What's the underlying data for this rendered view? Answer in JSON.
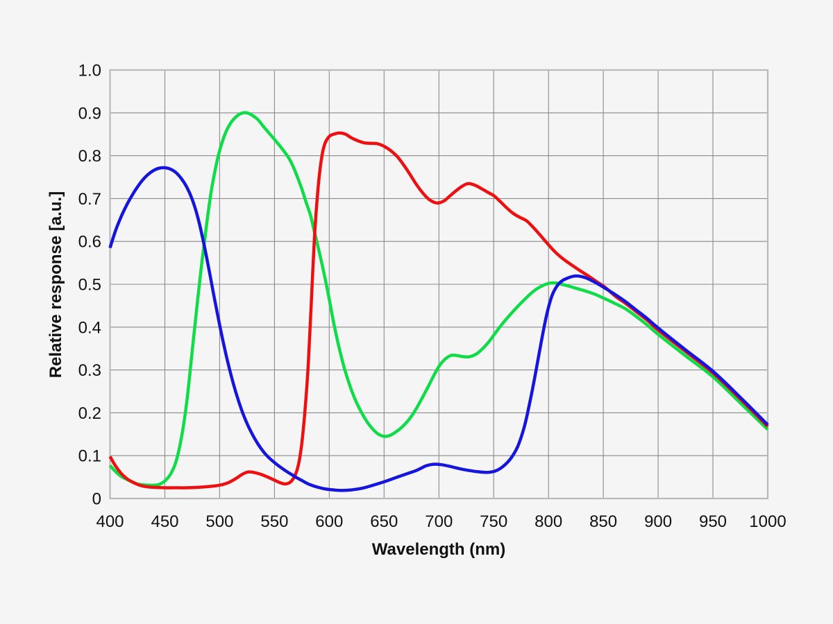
{
  "figure": {
    "background": "#f5f5f5",
    "grid_color": "#8a8a8a",
    "frame_color": "#b9b9b9",
    "text_color": "#111111",
    "line_width": 4.5
  },
  "chart_data": {
    "type": "line",
    "title": "",
    "xlabel": "Wavelength (nm)",
    "ylabel": "Relative response [a.u.]",
    "xlim": [
      400,
      1000
    ],
    "ylim": [
      0,
      1.0
    ],
    "grid": true,
    "legend_position": "none",
    "x_ticks": [
      {
        "v": 400,
        "label": "400"
      },
      {
        "v": 450,
        "label": "450"
      },
      {
        "v": 500,
        "label": "500"
      },
      {
        "v": 550,
        "label": "550"
      },
      {
        "v": 600,
        "label": "600"
      },
      {
        "v": 650,
        "label": "650"
      },
      {
        "v": 700,
        "label": "700"
      },
      {
        "v": 750,
        "label": "750"
      },
      {
        "v": 800,
        "label": "800"
      },
      {
        "v": 850,
        "label": "850"
      },
      {
        "v": 900,
        "label": "900"
      },
      {
        "v": 950,
        "label": "950"
      },
      {
        "v": 1000,
        "label": "1000"
      }
    ],
    "y_ticks": [
      {
        "v": 0.0,
        "label": "0"
      },
      {
        "v": 0.1,
        "label": "0.1"
      },
      {
        "v": 0.2,
        "label": "0.2"
      },
      {
        "v": 0.3,
        "label": "0.3"
      },
      {
        "v": 0.4,
        "label": "0.4"
      },
      {
        "v": 0.5,
        "label": "0.5"
      },
      {
        "v": 0.6,
        "label": "0.6"
      },
      {
        "v": 0.7,
        "label": "0.7"
      },
      {
        "v": 0.8,
        "label": "0.8"
      },
      {
        "v": 0.9,
        "label": "0.9"
      },
      {
        "v": 1.0,
        "label": "1.0"
      }
    ],
    "series": [
      {
        "name": "green-channel",
        "color": "#0edd47",
        "points": [
          [
            400,
            0.077
          ],
          [
            405,
            0.063
          ],
          [
            410,
            0.052
          ],
          [
            415,
            0.045
          ],
          [
            420,
            0.039
          ],
          [
            425,
            0.034
          ],
          [
            430,
            0.032
          ],
          [
            435,
            0.031
          ],
          [
            440,
            0.031
          ],
          [
            445,
            0.033
          ],
          [
            450,
            0.041
          ],
          [
            455,
            0.056
          ],
          [
            460,
            0.085
          ],
          [
            465,
            0.14
          ],
          [
            470,
            0.225
          ],
          [
            475,
            0.345
          ],
          [
            480,
            0.465
          ],
          [
            484,
            0.555
          ],
          [
            488,
            0.638
          ],
          [
            492,
            0.712
          ],
          [
            496,
            0.768
          ],
          [
            500,
            0.812
          ],
          [
            505,
            0.851
          ],
          [
            510,
            0.876
          ],
          [
            515,
            0.891
          ],
          [
            520,
            0.899
          ],
          [
            525,
            0.9
          ],
          [
            530,
            0.894
          ],
          [
            535,
            0.884
          ],
          [
            540,
            0.868
          ],
          [
            546,
            0.85
          ],
          [
            552,
            0.832
          ],
          [
            558,
            0.813
          ],
          [
            563,
            0.795
          ],
          [
            567,
            0.775
          ],
          [
            571,
            0.75
          ],
          [
            575,
            0.722
          ],
          [
            579,
            0.69
          ],
          [
            583,
            0.66
          ],
          [
            586,
            0.627
          ],
          [
            590,
            0.585
          ],
          [
            595,
            0.528
          ],
          [
            600,
            0.465
          ],
          [
            604,
            0.41
          ],
          [
            609,
            0.352
          ],
          [
            614,
            0.302
          ],
          [
            619,
            0.262
          ],
          [
            624,
            0.229
          ],
          [
            630,
            0.198
          ],
          [
            635,
            0.177
          ],
          [
            640,
            0.161
          ],
          [
            645,
            0.15
          ],
          [
            650,
            0.145
          ],
          [
            655,
            0.147
          ],
          [
            660,
            0.154
          ],
          [
            666,
            0.166
          ],
          [
            672,
            0.182
          ],
          [
            678,
            0.204
          ],
          [
            684,
            0.231
          ],
          [
            690,
            0.26
          ],
          [
            696,
            0.29
          ],
          [
            701,
            0.312
          ],
          [
            706,
            0.326
          ],
          [
            711,
            0.334
          ],
          [
            716,
            0.334
          ],
          [
            722,
            0.331
          ],
          [
            728,
            0.331
          ],
          [
            734,
            0.337
          ],
          [
            740,
            0.35
          ],
          [
            746,
            0.367
          ],
          [
            752,
            0.388
          ],
          [
            758,
            0.408
          ],
          [
            764,
            0.426
          ],
          [
            770,
            0.443
          ],
          [
            776,
            0.459
          ],
          [
            782,
            0.474
          ],
          [
            788,
            0.487
          ],
          [
            794,
            0.496
          ],
          [
            800,
            0.502
          ],
          [
            806,
            0.503
          ],
          [
            812,
            0.5
          ],
          [
            818,
            0.496
          ],
          [
            826,
            0.49
          ],
          [
            834,
            0.484
          ],
          [
            842,
            0.477
          ],
          [
            850,
            0.468
          ],
          [
            860,
            0.456
          ],
          [
            870,
            0.443
          ],
          [
            880,
            0.425
          ],
          [
            890,
            0.405
          ],
          [
            900,
            0.383
          ],
          [
            925,
            0.333
          ],
          [
            950,
            0.284
          ],
          [
            975,
            0.223
          ],
          [
            1000,
            0.161
          ]
        ]
      },
      {
        "name": "red-channel",
        "color": "#ee1010",
        "points": [
          [
            400,
            0.098
          ],
          [
            405,
            0.076
          ],
          [
            410,
            0.059
          ],
          [
            415,
            0.047
          ],
          [
            420,
            0.039
          ],
          [
            425,
            0.033
          ],
          [
            430,
            0.029
          ],
          [
            435,
            0.027
          ],
          [
            440,
            0.026
          ],
          [
            450,
            0.025
          ],
          [
            460,
            0.025
          ],
          [
            470,
            0.025
          ],
          [
            480,
            0.026
          ],
          [
            490,
            0.028
          ],
          [
            500,
            0.031
          ],
          [
            508,
            0.037
          ],
          [
            515,
            0.047
          ],
          [
            521,
            0.057
          ],
          [
            526,
            0.062
          ],
          [
            531,
            0.061
          ],
          [
            537,
            0.057
          ],
          [
            543,
            0.051
          ],
          [
            549,
            0.044
          ],
          [
            554,
            0.038
          ],
          [
            559,
            0.034
          ],
          [
            563,
            0.036
          ],
          [
            566,
            0.042
          ],
          [
            569,
            0.055
          ],
          [
            572,
            0.08
          ],
          [
            575,
            0.13
          ],
          [
            578,
            0.21
          ],
          [
            581,
            0.32
          ],
          [
            584,
            0.48
          ],
          [
            587,
            0.63
          ],
          [
            590,
            0.73
          ],
          [
            593,
            0.795
          ],
          [
            596,
            0.828
          ],
          [
            600,
            0.845
          ],
          [
            605,
            0.851
          ],
          [
            610,
            0.853
          ],
          [
            615,
            0.85
          ],
          [
            620,
            0.842
          ],
          [
            626,
            0.835
          ],
          [
            632,
            0.83
          ],
          [
            638,
            0.829
          ],
          [
            644,
            0.828
          ],
          [
            650,
            0.822
          ],
          [
            656,
            0.812
          ],
          [
            662,
            0.798
          ],
          [
            668,
            0.778
          ],
          [
            674,
            0.755
          ],
          [
            680,
            0.731
          ],
          [
            686,
            0.711
          ],
          [
            691,
            0.698
          ],
          [
            696,
            0.691
          ],
          [
            700,
            0.69
          ],
          [
            705,
            0.695
          ],
          [
            710,
            0.706
          ],
          [
            716,
            0.719
          ],
          [
            722,
            0.73
          ],
          [
            727,
            0.735
          ],
          [
            733,
            0.731
          ],
          [
            739,
            0.723
          ],
          [
            745,
            0.714
          ],
          [
            750,
            0.707
          ],
          [
            756,
            0.693
          ],
          [
            762,
            0.678
          ],
          [
            768,
            0.665
          ],
          [
            774,
            0.656
          ],
          [
            780,
            0.648
          ],
          [
            786,
            0.633
          ],
          [
            792,
            0.616
          ],
          [
            798,
            0.598
          ],
          [
            805,
            0.578
          ],
          [
            812,
            0.562
          ],
          [
            820,
            0.547
          ],
          [
            828,
            0.533
          ],
          [
            836,
            0.52
          ],
          [
            844,
            0.506
          ],
          [
            852,
            0.492
          ],
          [
            862,
            0.47
          ],
          [
            870,
            0.456
          ],
          [
            880,
            0.436
          ],
          [
            890,
            0.416
          ],
          [
            900,
            0.393
          ],
          [
            925,
            0.343
          ],
          [
            950,
            0.293
          ],
          [
            975,
            0.232
          ],
          [
            1000,
            0.168
          ]
        ]
      },
      {
        "name": "blue-channel",
        "color": "#1515dd",
        "points": [
          [
            400,
            0.585
          ],
          [
            405,
            0.625
          ],
          [
            410,
            0.657
          ],
          [
            415,
            0.684
          ],
          [
            420,
            0.707
          ],
          [
            425,
            0.727
          ],
          [
            430,
            0.744
          ],
          [
            435,
            0.757
          ],
          [
            440,
            0.766
          ],
          [
            445,
            0.771
          ],
          [
            450,
            0.772
          ],
          [
            455,
            0.769
          ],
          [
            460,
            0.761
          ],
          [
            465,
            0.747
          ],
          [
            470,
            0.727
          ],
          [
            475,
            0.698
          ],
          [
            480,
            0.657
          ],
          [
            485,
            0.602
          ],
          [
            490,
            0.538
          ],
          [
            495,
            0.47
          ],
          [
            500,
            0.405
          ],
          [
            505,
            0.345
          ],
          [
            510,
            0.292
          ],
          [
            515,
            0.246
          ],
          [
            520,
            0.207
          ],
          [
            525,
            0.175
          ],
          [
            530,
            0.149
          ],
          [
            535,
            0.127
          ],
          [
            540,
            0.109
          ],
          [
            545,
            0.095
          ],
          [
            550,
            0.084
          ],
          [
            555,
            0.074
          ],
          [
            560,
            0.065
          ],
          [
            565,
            0.057
          ],
          [
            570,
            0.049
          ],
          [
            575,
            0.042
          ],
          [
            580,
            0.035
          ],
          [
            585,
            0.03
          ],
          [
            590,
            0.026
          ],
          [
            595,
            0.023
          ],
          [
            600,
            0.021
          ],
          [
            610,
            0.019
          ],
          [
            620,
            0.02
          ],
          [
            630,
            0.024
          ],
          [
            640,
            0.031
          ],
          [
            650,
            0.039
          ],
          [
            660,
            0.048
          ],
          [
            670,
            0.057
          ],
          [
            680,
            0.066
          ],
          [
            688,
            0.076
          ],
          [
            695,
            0.08
          ],
          [
            702,
            0.079
          ],
          [
            710,
            0.075
          ],
          [
            718,
            0.07
          ],
          [
            726,
            0.066
          ],
          [
            734,
            0.063
          ],
          [
            742,
            0.061
          ],
          [
            748,
            0.062
          ],
          [
            754,
            0.067
          ],
          [
            760,
            0.078
          ],
          [
            766,
            0.095
          ],
          [
            772,
            0.122
          ],
          [
            778,
            0.168
          ],
          [
            783,
            0.225
          ],
          [
            788,
            0.29
          ],
          [
            793,
            0.36
          ],
          [
            798,
            0.425
          ],
          [
            803,
            0.472
          ],
          [
            808,
            0.497
          ],
          [
            813,
            0.509
          ],
          [
            818,
            0.515
          ],
          [
            823,
            0.519
          ],
          [
            828,
            0.519
          ],
          [
            834,
            0.515
          ],
          [
            840,
            0.508
          ],
          [
            847,
            0.498
          ],
          [
            854,
            0.487
          ],
          [
            862,
            0.474
          ],
          [
            870,
            0.46
          ],
          [
            880,
            0.44
          ],
          [
            890,
            0.42
          ],
          [
            900,
            0.398
          ],
          [
            925,
            0.347
          ],
          [
            950,
            0.297
          ],
          [
            975,
            0.236
          ],
          [
            1000,
            0.172
          ]
        ]
      }
    ]
  }
}
